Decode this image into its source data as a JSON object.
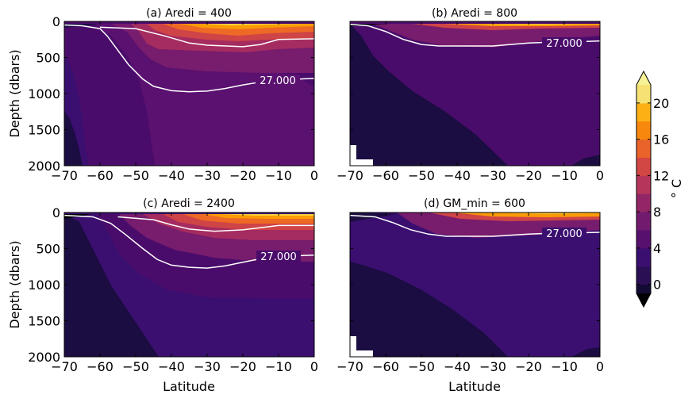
{
  "chart_data": [
    {
      "type": "contour",
      "title": "(a) Aredi = 400",
      "xlim": [
        -70,
        0
      ],
      "ylim": [
        2000,
        0
      ],
      "xticks": [
        "−70",
        "−60",
        "−50",
        "−40",
        "−30",
        "−20",
        "−10",
        "0"
      ],
      "yticks": [
        "0",
        "500",
        "1000",
        "1500",
        "2000"
      ],
      "xlabel": "",
      "ylabel": "Depth (dbars)",
      "isopycnal": {
        "label": "27.000",
        "points": [
          [
            -70,
            50
          ],
          [
            -65,
            60
          ],
          [
            -60,
            100
          ],
          [
            -58,
            200
          ],
          [
            -55,
            400
          ],
          [
            -52,
            600
          ],
          [
            -48,
            800
          ],
          [
            -45,
            900
          ],
          [
            -40,
            960
          ],
          [
            -35,
            975
          ],
          [
            -30,
            965
          ],
          [
            -25,
            930
          ],
          [
            -20,
            880
          ],
          [
            -15,
            840
          ],
          [
            -10,
            810
          ],
          [
            0,
            790
          ]
        ]
      },
      "isopycnal_2": [
        [
          -60,
          80
        ],
        [
          -50,
          100
        ],
        [
          -42,
          200
        ],
        [
          -35,
          300
        ],
        [
          -30,
          330
        ],
        [
          -20,
          350
        ],
        [
          -15,
          320
        ],
        [
          -10,
          250
        ],
        [
          0,
          240
        ]
      ]
    },
    {
      "type": "contour",
      "title": "(b) Aredi = 800",
      "xlim": [
        -70,
        0
      ],
      "ylim": [
        2000,
        0
      ],
      "xticks": [
        "−70",
        "−60",
        "−50",
        "−40",
        "−30",
        "−20",
        "−10",
        "0"
      ],
      "yticks": [],
      "xlabel": "",
      "ylabel": "",
      "isopycnal": {
        "label": "27.000",
        "points": [
          [
            -70,
            40
          ],
          [
            -65,
            60
          ],
          [
            -60,
            140
          ],
          [
            -55,
            250
          ],
          [
            -50,
            320
          ],
          [
            -45,
            340
          ],
          [
            -35,
            340
          ],
          [
            -30,
            340
          ],
          [
            -25,
            320
          ],
          [
            -20,
            300
          ],
          [
            -15,
            290
          ],
          [
            -5,
            280
          ],
          [
            0,
            270
          ]
        ]
      }
    },
    {
      "type": "contour",
      "title": "(c) Aredi = 2400",
      "xlim": [
        -70,
        0
      ],
      "ylim": [
        2000,
        0
      ],
      "xticks": [
        "−70",
        "−60",
        "−50",
        "−40",
        "−30",
        "−20",
        "−10",
        "0"
      ],
      "yticks": [
        "0",
        "500",
        "1000",
        "1500",
        "2000"
      ],
      "xlabel": "Latitude",
      "ylabel": "Depth (dbars)",
      "isopycnal": {
        "label": "27.000",
        "points": [
          [
            -70,
            40
          ],
          [
            -62,
            60
          ],
          [
            -57,
            150
          ],
          [
            -53,
            300
          ],
          [
            -48,
            500
          ],
          [
            -44,
            650
          ],
          [
            -40,
            730
          ],
          [
            -35,
            760
          ],
          [
            -30,
            770
          ],
          [
            -25,
            740
          ],
          [
            -20,
            690
          ],
          [
            -15,
            640
          ],
          [
            -10,
            610
          ],
          [
            0,
            590
          ]
        ]
      },
      "isopycnal_2": [
        [
          -55,
          60
        ],
        [
          -45,
          100
        ],
        [
          -40,
          170
        ],
        [
          -35,
          230
        ],
        [
          -28,
          260
        ],
        [
          -20,
          240
        ],
        [
          -10,
          180
        ],
        [
          0,
          180
        ]
      ]
    },
    {
      "type": "contour",
      "title": "(d) GM_min = 600",
      "xlim": [
        -70,
        0
      ],
      "ylim": [
        2000,
        0
      ],
      "xticks": [
        "−70",
        "−60",
        "−50",
        "−40",
        "−30",
        "−20",
        "−10",
        "0"
      ],
      "yticks": [],
      "xlabel": "Latitude",
      "ylabel": "",
      "isopycnal": {
        "label": "27.000",
        "points": [
          [
            -70,
            40
          ],
          [
            -63,
            60
          ],
          [
            -58,
            140
          ],
          [
            -53,
            240
          ],
          [
            -48,
            300
          ],
          [
            -43,
            330
          ],
          [
            -35,
            330
          ],
          [
            -30,
            330
          ],
          [
            -25,
            315
          ],
          [
            -20,
            300
          ],
          [
            -15,
            290
          ],
          [
            -5,
            280
          ],
          [
            0,
            275
          ]
        ]
      }
    }
  ],
  "colorbar": {
    "label": "° C",
    "ticks": [
      "0",
      "4",
      "8",
      "12",
      "16",
      "20"
    ],
    "levels": [
      -2,
      0,
      2,
      4,
      6,
      8,
      10,
      12,
      14,
      16,
      18,
      20,
      22
    ],
    "colors": [
      "#000004",
      "#1b0c41",
      "#4a0c6b",
      "#781c6d",
      "#a52c60",
      "#cf4446",
      "#ed6925",
      "#fb9b06",
      "#f7d13d",
      "#fcffa4",
      "#fcffa4",
      "#fcffa4"
    ],
    "extend": "both"
  }
}
